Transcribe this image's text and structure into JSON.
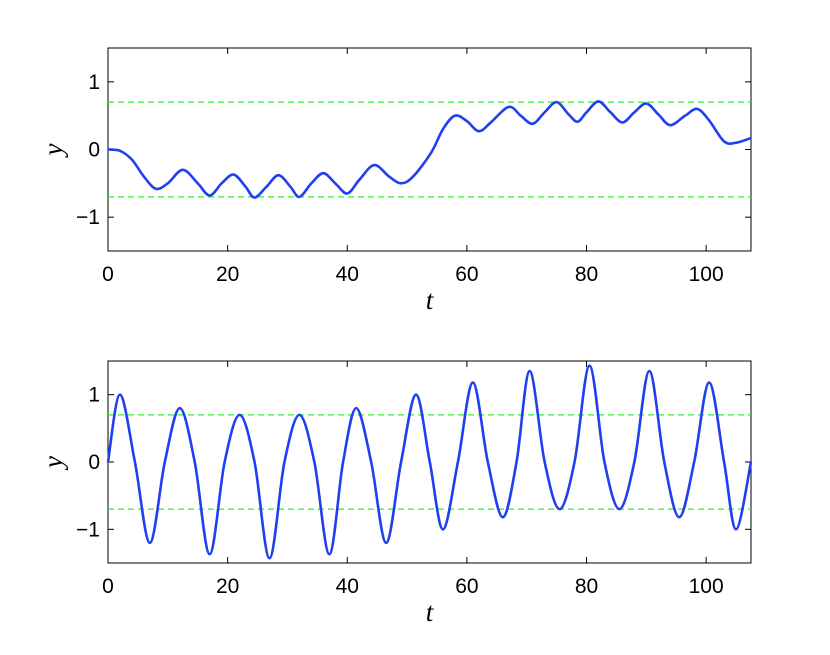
{
  "chart_data": [
    {
      "type": "line",
      "xlabel": "t",
      "ylabel": "y",
      "xlim": [
        0,
        107.5
      ],
      "ylim": [
        -1.5,
        1.5
      ],
      "xticks": [
        0,
        20,
        40,
        60,
        80,
        100
      ],
      "yticks": [
        {
          "value": -1,
          "label": "−1"
        },
        0,
        1
      ],
      "reference_lines": {
        "values": [
          0.7,
          -0.7
        ],
        "color": "#33ee33",
        "style": "dashed"
      },
      "series": [
        {
          "color": "#1f3ff0",
          "x": [
            0,
            2,
            4,
            6,
            8,
            10,
            12.5,
            15,
            17,
            19,
            21,
            23,
            24.5,
            26.5,
            28.5,
            30.5,
            32,
            34,
            36,
            38,
            40,
            42,
            44.5,
            47,
            49,
            51,
            54,
            56,
            58,
            60,
            62,
            64,
            67,
            69,
            71,
            73,
            75,
            77,
            78.5,
            80,
            82,
            84,
            86,
            88,
            90,
            92,
            94,
            96.5,
            98.5,
            100.5,
            103,
            105,
            107.5
          ],
          "values": [
            0,
            -0.02,
            -0.15,
            -0.4,
            -0.58,
            -0.5,
            -0.3,
            -0.5,
            -0.68,
            -0.5,
            -0.37,
            -0.55,
            -0.71,
            -0.55,
            -0.38,
            -0.55,
            -0.7,
            -0.5,
            -0.35,
            -0.5,
            -0.65,
            -0.45,
            -0.23,
            -0.4,
            -0.5,
            -0.4,
            -0.05,
            0.3,
            0.5,
            0.42,
            0.27,
            0.4,
            0.63,
            0.5,
            0.38,
            0.55,
            0.7,
            0.52,
            0.41,
            0.55,
            0.71,
            0.55,
            0.4,
            0.55,
            0.68,
            0.52,
            0.36,
            0.5,
            0.6,
            0.43,
            0.12,
            0.1,
            0.17
          ]
        }
      ]
    },
    {
      "type": "line",
      "xlabel": "t",
      "ylabel": "y",
      "xlim": [
        0,
        107.5
      ],
      "ylim": [
        -1.5,
        1.5
      ],
      "xticks": [
        0,
        20,
        40,
        60,
        80,
        100
      ],
      "yticks": [
        {
          "value": -1,
          "label": "−1"
        },
        0,
        1
      ],
      "reference_lines": {
        "values": [
          0.7,
          -0.7
        ],
        "color": "#33ee33",
        "style": "dashed"
      },
      "series": [
        {
          "color": "#1f3ff0",
          "x": [
            0,
            2,
            4.5,
            7,
            9.5,
            12,
            14.5,
            17,
            19.5,
            22,
            24.5,
            27,
            29.5,
            32,
            34.5,
            37,
            39.3,
            41.5,
            44,
            46.5,
            49,
            51.5,
            53.8,
            56,
            58.5,
            61,
            63.5,
            66,
            68.3,
            70.5,
            73,
            75.5,
            78,
            80.5,
            83,
            85.5,
            88,
            90.5,
            93,
            95.5,
            98,
            100.5,
            103,
            105,
            107.5
          ],
          "values": [
            0,
            1.0,
            0,
            -1.2,
            0,
            0.8,
            0,
            -1.37,
            0,
            0.7,
            0,
            -1.43,
            0,
            0.7,
            0,
            -1.37,
            0,
            0.8,
            0,
            -1.2,
            0,
            1.0,
            0,
            -1.0,
            0,
            1.18,
            0,
            -0.82,
            0,
            1.35,
            0,
            -0.7,
            0,
            1.43,
            0,
            -0.7,
            0,
            1.35,
            0,
            -0.82,
            0,
            1.18,
            0,
            -1.0,
            0
          ]
        }
      ]
    }
  ]
}
